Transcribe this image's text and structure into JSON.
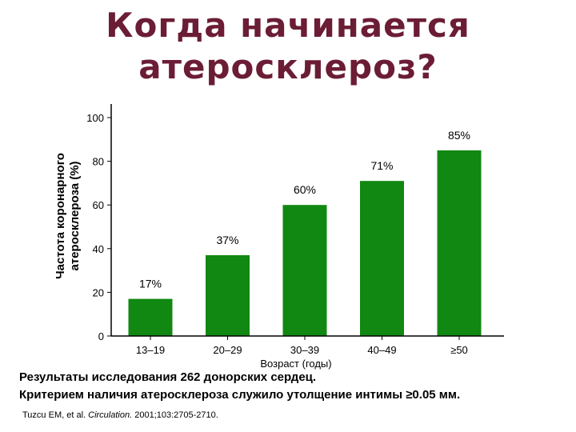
{
  "title_line1": "Когда начинается",
  "title_line2": "атеросклероз?",
  "notes": {
    "line1": "Результаты исследования 262 донорских сердец.",
    "line2": "Критерием наличия атеросклероза служило утолщение интимы ≥0.05 мм."
  },
  "citation": {
    "authors": "Tuzcu EM, et al.",
    "journal": "Circulation.",
    "ref": "2001;103:2705-2710."
  },
  "colors": {
    "bar": "#118811",
    "title": "#6b1d35"
  },
  "chart_data": {
    "type": "bar",
    "categories": [
      "13–19",
      "20–29",
      "30–39",
      "40–49",
      "≥50"
    ],
    "values": [
      17,
      37,
      60,
      71,
      85
    ],
    "data_labels": [
      "17%",
      "37%",
      "60%",
      "71%",
      "85%"
    ],
    "xlabel": "Возраст (годы)",
    "ylabel_line1": "Частота коронарного",
    "ylabel_line2": "атеросклероза (%)",
    "y_ticks": [
      "0",
      "20",
      "40",
      "60",
      "80",
      "100"
    ],
    "y_tick_values": [
      0,
      20,
      40,
      60,
      80,
      100
    ],
    "ylim": [
      0,
      100
    ],
    "grid": false,
    "legend": "none"
  }
}
